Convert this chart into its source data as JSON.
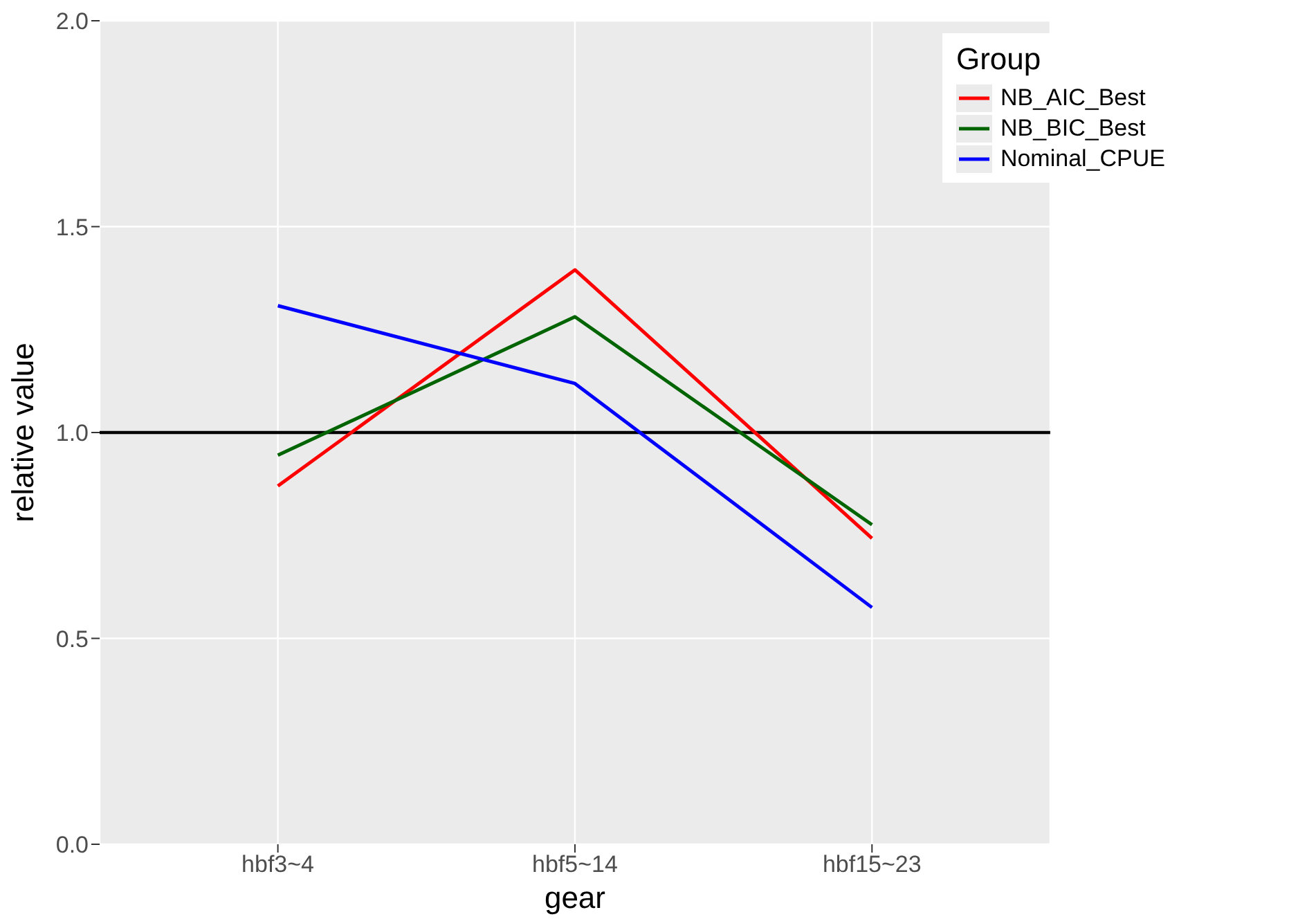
{
  "chart_data": {
    "type": "line",
    "xlabel": "gear",
    "ylabel": "relative value",
    "legend_title": "Group",
    "categories": [
      "hbf3~4",
      "hbf5~14",
      "hbf15~23"
    ],
    "series": [
      {
        "name": "NB_AIC_Best",
        "color": "#ff0000",
        "values": [
          0.87,
          1.395,
          0.743
        ]
      },
      {
        "name": "NB_BIC_Best",
        "color": "#006400",
        "values": [
          0.945,
          1.281,
          0.776
        ]
      },
      {
        "name": "Nominal_CPUE",
        "color": "#0000ff",
        "values": [
          1.308,
          1.119,
          0.575
        ]
      }
    ],
    "ylim": [
      0,
      2
    ],
    "yticks": [
      {
        "value": 0,
        "label": "0.0"
      },
      {
        "value": 0.5,
        "label": "0.5"
      },
      {
        "value": 1,
        "label": "1.0"
      },
      {
        "value": 1.5,
        "label": "1.5"
      },
      {
        "value": 2,
        "label": "2.0"
      }
    ],
    "ref_lines": [
      {
        "axis": "y",
        "value": 1,
        "label": null,
        "color": "#000000"
      }
    ],
    "grid": true,
    "legend": "top right",
    "marker": "none",
    "line_style": "solid"
  }
}
